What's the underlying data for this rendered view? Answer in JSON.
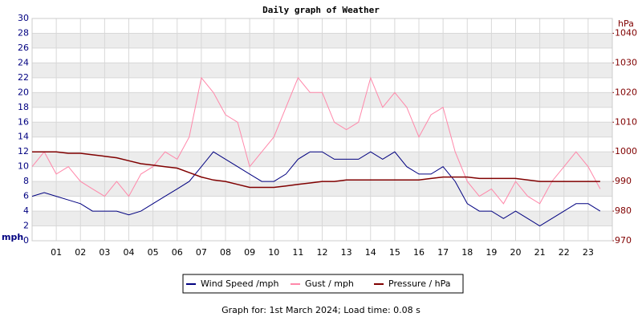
{
  "chart_data": {
    "type": "line",
    "title": "Daily graph of Weather",
    "y_label": "mph",
    "y2_label": "hPa",
    "footer": "Graph for: 1st March 2024; Load time: 0.08 s",
    "xlim": [
      0,
      24
    ],
    "xticks": [
      {
        "value": 1,
        "label": "01"
      },
      {
        "value": 2,
        "label": "02"
      },
      {
        "value": 3,
        "label": "03"
      },
      {
        "value": 4,
        "label": "04"
      },
      {
        "value": 5,
        "label": "05"
      },
      {
        "value": 6,
        "label": "06"
      },
      {
        "value": 7,
        "label": "07"
      },
      {
        "value": 8,
        "label": "08"
      },
      {
        "value": 9,
        "label": "09"
      },
      {
        "value": 10,
        "label": "10"
      },
      {
        "value": 11,
        "label": "11"
      },
      {
        "value": 12,
        "label": "12"
      },
      {
        "value": 13,
        "label": "13"
      },
      {
        "value": 14,
        "label": "14"
      },
      {
        "value": 15,
        "label": "15"
      },
      {
        "value": 16,
        "label": "16"
      },
      {
        "value": 17,
        "label": "17"
      },
      {
        "value": 18,
        "label": "18"
      },
      {
        "value": 19,
        "label": "19"
      },
      {
        "value": 20,
        "label": "20"
      },
      {
        "value": 21,
        "label": "21"
      },
      {
        "value": 22,
        "label": "22"
      },
      {
        "value": 23,
        "label": "23"
      }
    ],
    "ylim": [
      0,
      30
    ],
    "yticks": [
      0,
      2,
      4,
      6,
      8,
      10,
      12,
      14,
      16,
      18,
      20,
      22,
      24,
      26,
      28,
      30
    ],
    "y2lim": [
      970,
      1045
    ],
    "y2ticks": [
      970,
      980,
      990,
      1000,
      1010,
      1020,
      1030,
      1040
    ],
    "grid": true,
    "x": [
      0,
      0.5,
      1,
      1.5,
      2,
      2.5,
      3,
      3.5,
      4,
      4.5,
      5,
      5.5,
      6,
      6.5,
      7,
      7.5,
      8,
      8.5,
      9,
      9.5,
      10,
      10.5,
      11,
      11.5,
      12,
      12.5,
      13,
      13.5,
      14,
      14.5,
      15,
      15.5,
      16,
      16.5,
      17,
      17.5,
      18,
      18.5,
      19,
      19.5,
      20,
      20.5,
      21,
      21.5,
      22,
      22.5,
      23,
      23.5
    ],
    "series": [
      {
        "name": "Wind Speed /mph",
        "color": "#000080",
        "values": [
          6,
          6.5,
          6,
          5.5,
          5,
          4,
          4,
          4,
          3.5,
          4,
          5,
          6,
          7,
          8,
          10,
          12,
          11,
          10,
          9,
          8,
          8,
          9,
          11,
          12,
          12,
          11,
          11,
          11,
          12,
          11,
          12,
          10,
          9,
          9,
          10,
          8,
          5,
          4,
          4,
          3,
          4,
          3,
          2,
          3,
          4,
          5,
          5,
          4
        ]
      },
      {
        "name": "Gust / mph",
        "color": "#ff88aa",
        "values": [
          10,
          12,
          9,
          10,
          8,
          7,
          6,
          8,
          6,
          9,
          10,
          12,
          11,
          14,
          22,
          20,
          17,
          16,
          10,
          12,
          14,
          18,
          22,
          20,
          20,
          16,
          15,
          16,
          22,
          18,
          20,
          18,
          14,
          17,
          18,
          12,
          8,
          6,
          7,
          5,
          8,
          6,
          5,
          8,
          10,
          12,
          10,
          7
        ]
      },
      {
        "name": "Pressure / hPa",
        "color": "#800000",
        "axis": "y2",
        "values": [
          1000,
          1000,
          1000,
          999.5,
          999.5,
          999,
          998.5,
          998,
          997,
          996,
          995.5,
          995,
          994.5,
          993,
          991.5,
          990.5,
          990,
          989,
          988,
          988,
          988,
          988.5,
          989,
          989.5,
          990,
          990,
          990.5,
          990.5,
          990.5,
          990.5,
          990.5,
          990.5,
          990.5,
          991,
          991.5,
          991.5,
          991.5,
          991,
          991,
          991,
          991,
          990.5,
          990,
          990,
          990,
          990,
          990,
          990
        ]
      }
    ]
  }
}
